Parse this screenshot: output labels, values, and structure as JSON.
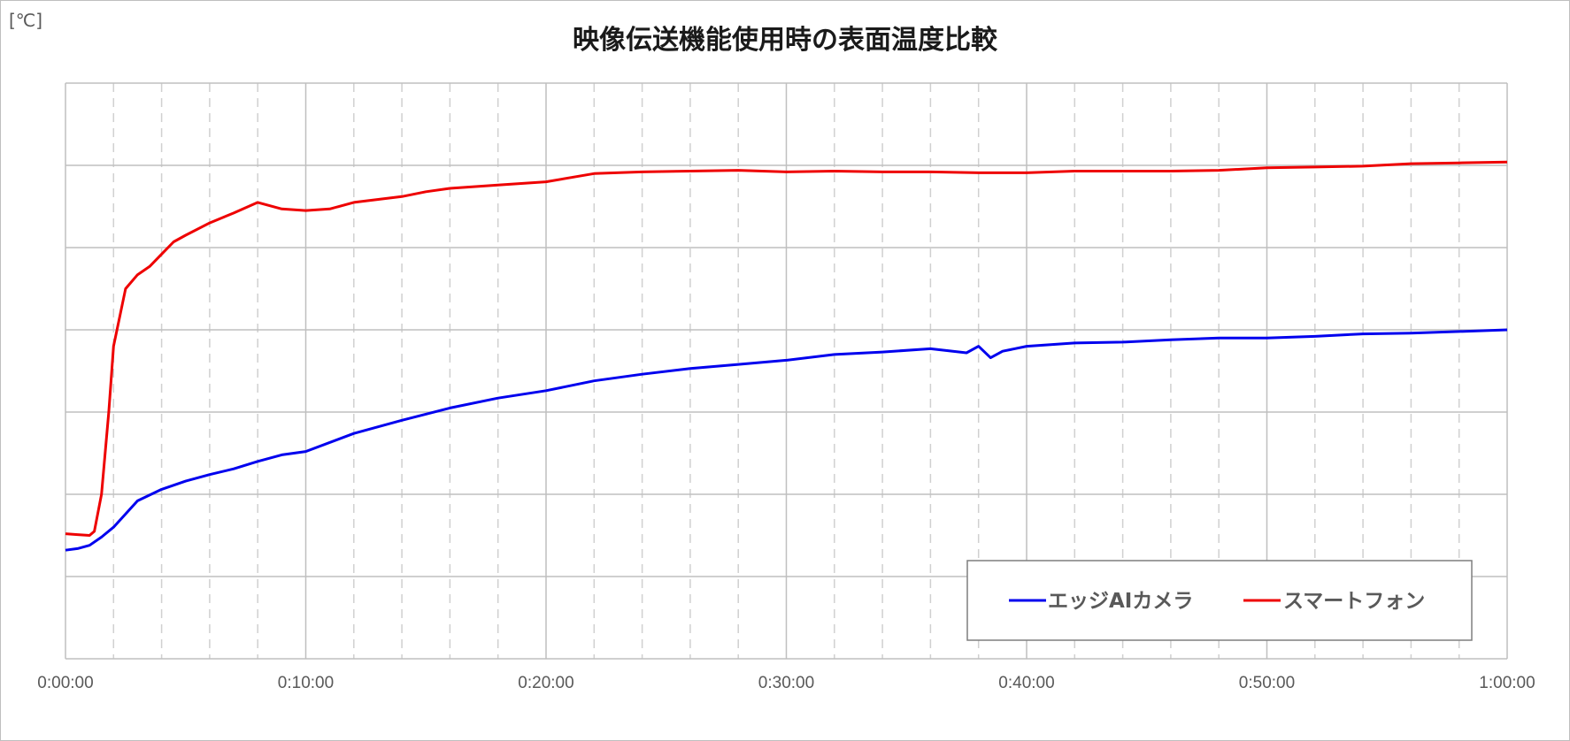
{
  "chart_data": {
    "type": "line",
    "title": "映像伝送機能使用時の表面温度比較",
    "unit_label": "[℃]",
    "xlabel": "",
    "ylabel": "",
    "x_range_minutes": [
      0,
      60
    ],
    "x_tick_labels": [
      "0:00:00",
      "0:10:00",
      "0:20:00",
      "0:30:00",
      "0:40:00",
      "0:50:00",
      "1:00:00"
    ],
    "x_tick_minutes": [
      0,
      10,
      20,
      30,
      40,
      50,
      60
    ],
    "y_range_gridlines": [
      0,
      7
    ],
    "y_gridlines": 7,
    "y_tick_labels_shown": false,
    "grid": {
      "major": true,
      "minor_x_dashed": true
    },
    "legend_position": "bottom-right",
    "series": [
      {
        "name": "エッジAIカメラ",
        "color": "#0000ee",
        "x_minutes": [
          0,
          0.5,
          1,
          1.5,
          2,
          3,
          4,
          5,
          6,
          7,
          8,
          9,
          10,
          12,
          14,
          16,
          18,
          20,
          22,
          24,
          26,
          28,
          30,
          32,
          34,
          36,
          37.5,
          38,
          38.5,
          39,
          40,
          42,
          44,
          46,
          48,
          50,
          52,
          54,
          56,
          58,
          60
        ],
        "values": [
          1.32,
          1.34,
          1.38,
          1.48,
          1.6,
          1.92,
          2.06,
          2.16,
          2.24,
          2.31,
          2.4,
          2.48,
          2.52,
          2.74,
          2.9,
          3.05,
          3.17,
          3.26,
          3.38,
          3.46,
          3.53,
          3.58,
          3.63,
          3.7,
          3.73,
          3.77,
          3.72,
          3.8,
          3.66,
          3.74,
          3.8,
          3.84,
          3.85,
          3.88,
          3.9,
          3.9,
          3.92,
          3.95,
          3.96,
          3.98,
          4.0
        ]
      },
      {
        "name": "スマートフォン",
        "color": "#ee0000",
        "x_minutes": [
          0,
          0.5,
          1,
          1.2,
          1.5,
          1.8,
          2,
          2.5,
          3,
          3.5,
          4,
          4.5,
          5,
          6,
          7,
          8,
          9,
          10,
          11,
          12,
          14,
          15,
          16,
          18,
          20,
          22,
          24,
          26,
          28,
          30,
          32,
          34,
          36,
          38,
          40,
          42,
          44,
          46,
          48,
          50,
          52,
          54,
          56,
          58,
          60
        ],
        "values": [
          1.52,
          1.51,
          1.5,
          1.55,
          2.0,
          3.0,
          3.8,
          4.5,
          4.67,
          4.77,
          4.92,
          5.07,
          5.15,
          5.3,
          5.42,
          5.55,
          5.47,
          5.45,
          5.47,
          5.55,
          5.62,
          5.68,
          5.72,
          5.76,
          5.8,
          5.9,
          5.92,
          5.93,
          5.94,
          5.92,
          5.93,
          5.92,
          5.92,
          5.91,
          5.91,
          5.93,
          5.93,
          5.93,
          5.94,
          5.97,
          5.98,
          5.99,
          6.02,
          6.03,
          6.04
        ]
      }
    ]
  }
}
